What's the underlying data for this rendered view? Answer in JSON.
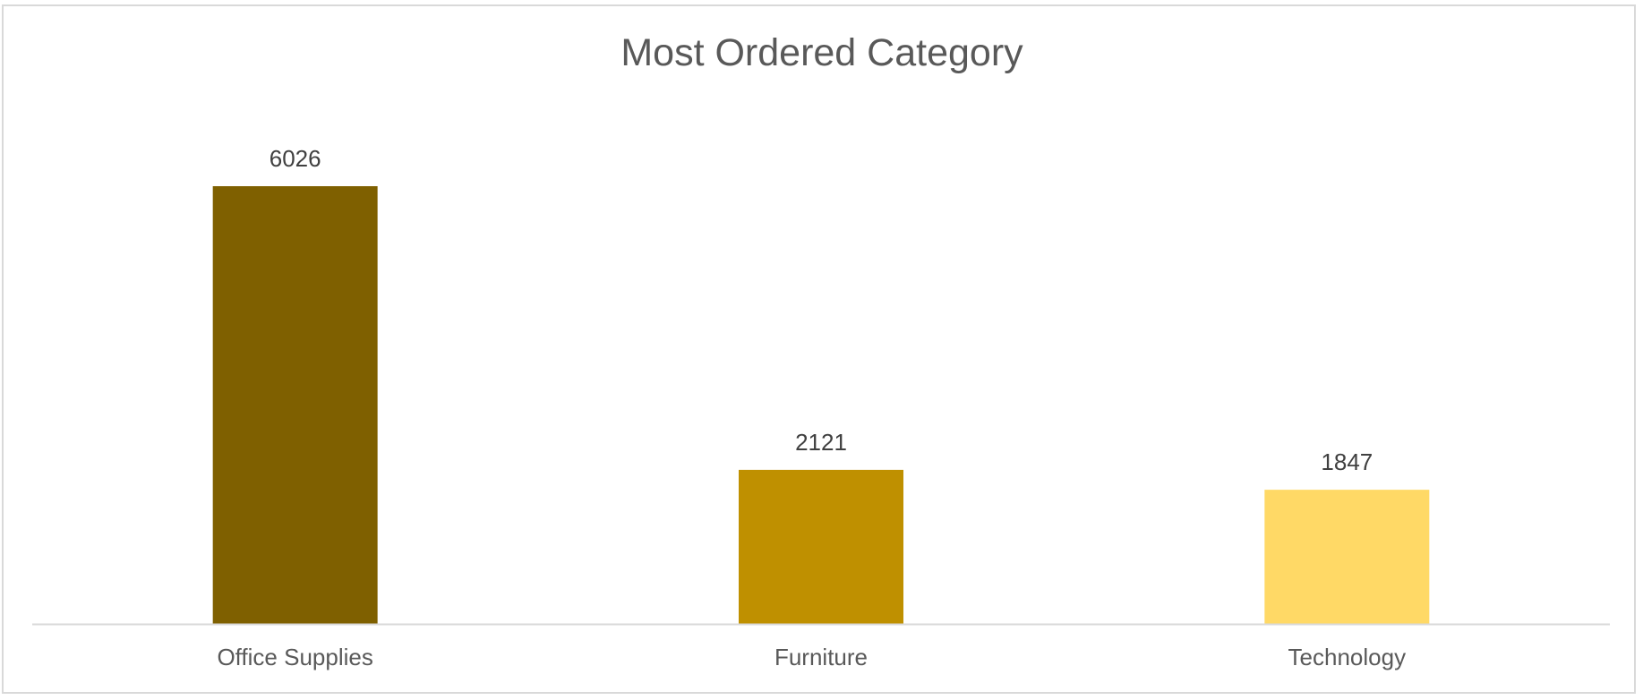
{
  "chart_data": {
    "type": "bar",
    "title": "Most Ordered Category",
    "xlabel": "",
    "ylabel": "",
    "categories": [
      "Office Supplies",
      "Furniture",
      "Technology"
    ],
    "values": [
      6026,
      2121,
      1847
    ],
    "bar_colors": [
      "#7F6000",
      "#BF9000",
      "#FFD966"
    ],
    "data_labels": true,
    "gridlines": false,
    "legend": "none",
    "ylim": [
      0,
      6026
    ]
  }
}
